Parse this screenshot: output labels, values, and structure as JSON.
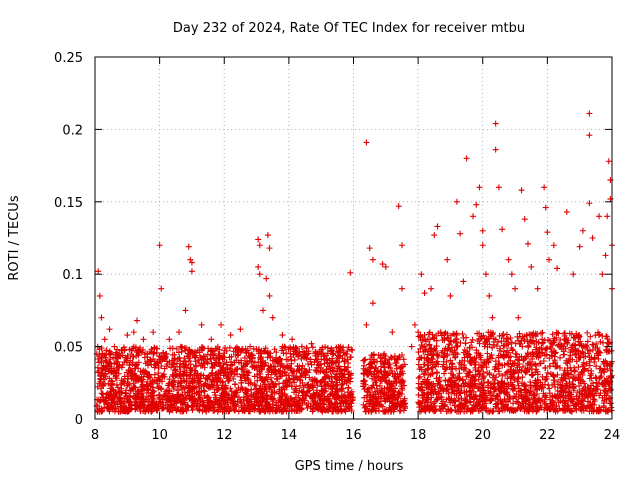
{
  "chart_data": {
    "type": "scatter",
    "title": "Day 232 of 2024, Rate Of TEC Index for receiver mtbu",
    "xlabel": "GPS time / hours",
    "ylabel": "ROTI / TECUs",
    "xlim": [
      8,
      24
    ],
    "ylim": [
      0,
      0.25
    ],
    "x_ticks": [
      8,
      10,
      12,
      14,
      16,
      18,
      20,
      22,
      24
    ],
    "x_tick_labels": [
      "8",
      "10",
      "12",
      "14",
      "16",
      "18",
      "20",
      "22",
      "24"
    ],
    "y_ticks": [
      0,
      0.05,
      0.1,
      0.15,
      0.2,
      0.25
    ],
    "y_tick_labels": [
      "0",
      "0.05",
      "0.1",
      "0.15",
      "0.2",
      "0.25"
    ],
    "grid": true,
    "marker": "+",
    "marker_color": "#e00000",
    "series": [
      {
        "name": "ROTI",
        "color": "#e00000",
        "points": [
          [
            8.1,
            0.102
          ],
          [
            8.15,
            0.085
          ],
          [
            8.2,
            0.07
          ],
          [
            8.3,
            0.055
          ],
          [
            8.45,
            0.062
          ],
          [
            8.6,
            0.05
          ],
          [
            8.75,
            0.045
          ],
          [
            9.0,
            0.058
          ],
          [
            9.2,
            0.06
          ],
          [
            9.3,
            0.068
          ],
          [
            9.5,
            0.055
          ],
          [
            9.8,
            0.06
          ],
          [
            10.0,
            0.12
          ],
          [
            10.05,
            0.09
          ],
          [
            10.3,
            0.055
          ],
          [
            10.6,
            0.06
          ],
          [
            10.8,
            0.075
          ],
          [
            10.9,
            0.119
          ],
          [
            10.95,
            0.11
          ],
          [
            11.0,
            0.108
          ],
          [
            11.0,
            0.102
          ],
          [
            11.3,
            0.065
          ],
          [
            11.6,
            0.055
          ],
          [
            11.9,
            0.065
          ],
          [
            12.2,
            0.058
          ],
          [
            12.5,
            0.062
          ],
          [
            12.8,
            0.05
          ],
          [
            13.05,
            0.124
          ],
          [
            13.1,
            0.12
          ],
          [
            13.05,
            0.105
          ],
          [
            13.1,
            0.1
          ],
          [
            13.35,
            0.127
          ],
          [
            13.4,
            0.118
          ],
          [
            13.3,
            0.097
          ],
          [
            13.4,
            0.085
          ],
          [
            13.2,
            0.075
          ],
          [
            13.5,
            0.07
          ],
          [
            13.8,
            0.058
          ],
          [
            14.1,
            0.055
          ],
          [
            14.4,
            0.05
          ],
          [
            14.7,
            0.052
          ],
          [
            15.0,
            0.048
          ],
          [
            15.3,
            0.047
          ],
          [
            15.6,
            0.05
          ],
          [
            15.9,
            0.101
          ],
          [
            16.4,
            0.191
          ],
          [
            16.5,
            0.118
          ],
          [
            16.4,
            0.065
          ],
          [
            16.6,
            0.11
          ],
          [
            16.6,
            0.08
          ],
          [
            16.9,
            0.107
          ],
          [
            17.0,
            0.105
          ],
          [
            17.2,
            0.06
          ],
          [
            17.4,
            0.147
          ],
          [
            17.5,
            0.12
          ],
          [
            17.5,
            0.09
          ],
          [
            17.8,
            0.05
          ],
          [
            17.9,
            0.065
          ],
          [
            18.1,
            0.1
          ],
          [
            18.2,
            0.087
          ],
          [
            18.3,
            0.055
          ],
          [
            18.4,
            0.09
          ],
          [
            18.5,
            0.127
          ],
          [
            18.6,
            0.133
          ],
          [
            18.7,
            0.06
          ],
          [
            18.9,
            0.11
          ],
          [
            19.0,
            0.085
          ],
          [
            19.2,
            0.15
          ],
          [
            19.3,
            0.128
          ],
          [
            19.4,
            0.095
          ],
          [
            19.5,
            0.18
          ],
          [
            19.7,
            0.14
          ],
          [
            19.8,
            0.148
          ],
          [
            19.9,
            0.16
          ],
          [
            20.0,
            0.13
          ],
          [
            20.0,
            0.12
          ],
          [
            20.1,
            0.1
          ],
          [
            20.2,
            0.085
          ],
          [
            20.3,
            0.07
          ],
          [
            20.4,
            0.204
          ],
          [
            20.4,
            0.186
          ],
          [
            20.5,
            0.16
          ],
          [
            20.6,
            0.131
          ],
          [
            20.8,
            0.11
          ],
          [
            20.9,
            0.1
          ],
          [
            21.0,
            0.09
          ],
          [
            21.1,
            0.07
          ],
          [
            21.2,
            0.158
          ],
          [
            21.3,
            0.138
          ],
          [
            21.4,
            0.121
          ],
          [
            21.5,
            0.105
          ],
          [
            21.7,
            0.09
          ],
          [
            21.9,
            0.16
          ],
          [
            21.95,
            0.146
          ],
          [
            22.0,
            0.129
          ],
          [
            22.05,
            0.11
          ],
          [
            22.2,
            0.12
          ],
          [
            22.3,
            0.104
          ],
          [
            22.6,
            0.143
          ],
          [
            22.8,
            0.1
          ],
          [
            23.0,
            0.119
          ],
          [
            23.1,
            0.13
          ],
          [
            23.3,
            0.211
          ],
          [
            23.3,
            0.196
          ],
          [
            23.3,
            0.149
          ],
          [
            23.4,
            0.125
          ],
          [
            23.6,
            0.14
          ],
          [
            23.7,
            0.1
          ],
          [
            23.8,
            0.113
          ],
          [
            23.85,
            0.14
          ],
          [
            23.9,
            0.178
          ],
          [
            23.95,
            0.165
          ],
          [
            23.95,
            0.152
          ],
          [
            24.0,
            0.12
          ],
          [
            24.0,
            0.09
          ]
        ],
        "dense_bands": [
          {
            "x_range": [
              8.05,
              16.0
            ],
            "y_range": [
              0.005,
              0.05
            ]
          },
          {
            "x_range": [
              16.3,
              17.6
            ],
            "y_range": [
              0.005,
              0.045
            ]
          },
          {
            "x_range": [
              18.0,
              24.0
            ],
            "y_range": [
              0.005,
              0.06
            ]
          }
        ]
      }
    ]
  }
}
